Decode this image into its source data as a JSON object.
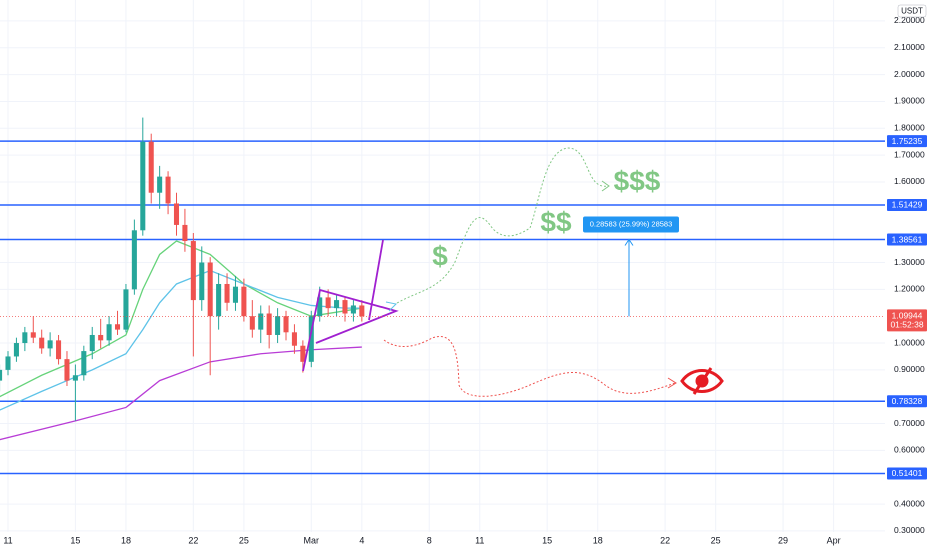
{
  "chart_data": {
    "type": "candlestick",
    "unit": "USDT",
    "xlim": [
      10.525,
      63.05
    ],
    "ylim": [
      0.296,
      2.278
    ],
    "xticks": [
      {
        "value": 11,
        "label": "11"
      },
      {
        "value": 15,
        "label": "15"
      },
      {
        "value": 18,
        "label": "18"
      },
      {
        "value": 22,
        "label": "22"
      },
      {
        "value": 25,
        "label": "25"
      },
      {
        "value": 29,
        "label": "Mar"
      },
      {
        "value": 32,
        "label": "4"
      },
      {
        "value": 36,
        "label": "8"
      },
      {
        "value": 39,
        "label": "11"
      },
      {
        "value": 43,
        "label": "15"
      },
      {
        "value": 46,
        "label": "18"
      },
      {
        "value": 50,
        "label": "22"
      },
      {
        "value": 53,
        "label": "25"
      },
      {
        "value": 57,
        "label": "29"
      },
      {
        "value": 60,
        "label": "Apr"
      }
    ],
    "yticks": [
      {
        "value": 2.2,
        "label": "2.20000"
      },
      {
        "value": 2.1,
        "label": "2.10000"
      },
      {
        "value": 2.0,
        "label": "2.00000"
      },
      {
        "value": 1.9,
        "label": "1.90000"
      },
      {
        "value": 1.8,
        "label": "1.80000"
      },
      {
        "value": 1.7,
        "label": "1.70000"
      },
      {
        "value": 1.6,
        "label": "1.60000"
      },
      {
        "value": 1.3,
        "label": "1.30000"
      },
      {
        "value": 1.2,
        "label": "1.20000"
      },
      {
        "value": 1.0,
        "label": "1.00000"
      },
      {
        "value": 0.9,
        "label": "0.90000"
      },
      {
        "value": 0.7,
        "label": "0.70000"
      },
      {
        "value": 0.6,
        "label": "0.60000"
      },
      {
        "value": 0.4,
        "label": "0.40000"
      },
      {
        "value": 0.3,
        "label": "0.30000"
      }
    ],
    "up_color": "#26a69a",
    "down_color": "#ef5350",
    "x": [
      10.5,
      11,
      11.5,
      12,
      12.5,
      13,
      13.5,
      14,
      14.5,
      15,
      15.5,
      16,
      16.5,
      17,
      17.5,
      18,
      18.5,
      19,
      19.5,
      20,
      20.5,
      21,
      21.5,
      22,
      22.5,
      23,
      23.5,
      24,
      24.5,
      25,
      25.5,
      26,
      26.5,
      27,
      27.5,
      28,
      28.5,
      29,
      29.5,
      30,
      30.5,
      31,
      31.5,
      32
    ],
    "open": [
      0.86,
      0.9,
      0.95,
      1.0,
      1.04,
      1.02,
      0.98,
      1.01,
      0.94,
      0.86,
      0.88,
      0.97,
      1.03,
      1.01,
      1.07,
      1.05,
      1.2,
      1.42,
      1.75,
      1.56,
      1.62,
      1.52,
      1.44,
      1.38,
      1.16,
      1.3,
      1.1,
      1.22,
      1.15,
      1.21,
      1.1,
      1.05,
      1.11,
      1.03,
      1.1,
      1.04,
      0.99,
      0.93,
      1.1,
      1.17,
      1.13,
      1.16,
      1.11,
      1.14
    ],
    "high": [
      0.92,
      0.97,
      1.02,
      1.06,
      1.1,
      1.05,
      1.04,
      1.03,
      0.97,
      0.92,
      0.99,
      1.06,
      1.09,
      1.1,
      1.12,
      1.22,
      1.46,
      1.84,
      1.78,
      1.66,
      1.64,
      1.56,
      1.5,
      1.41,
      1.36,
      1.32,
      1.26,
      1.26,
      1.25,
      1.24,
      1.16,
      1.14,
      1.14,
      1.13,
      1.12,
      1.07,
      1.01,
      1.12,
      1.21,
      1.2,
      1.18,
      1.17,
      1.16,
      1.16
    ],
    "low": [
      0.82,
      0.88,
      0.93,
      0.97,
      1.0,
      0.96,
      0.95,
      0.92,
      0.84,
      0.71,
      0.86,
      0.94,
      0.98,
      0.99,
      1.03,
      1.04,
      1.18,
      1.4,
      1.52,
      1.5,
      1.48,
      1.4,
      1.34,
      0.95,
      1.12,
      0.88,
      1.05,
      1.12,
      1.12,
      1.08,
      1.02,
      1.0,
      0.98,
      1.0,
      1.01,
      0.96,
      0.89,
      0.91,
      1.08,
      1.1,
      1.1,
      1.08,
      1.08,
      1.08
    ],
    "close": [
      0.9,
      0.95,
      1.0,
      1.04,
      1.02,
      0.98,
      1.01,
      0.94,
      0.86,
      0.88,
      0.97,
      1.03,
      1.01,
      1.07,
      1.05,
      1.2,
      1.42,
      1.75,
      1.56,
      1.62,
      1.52,
      1.44,
      1.38,
      1.16,
      1.3,
      1.1,
      1.22,
      1.15,
      1.21,
      1.1,
      1.05,
      1.11,
      1.03,
      1.1,
      1.04,
      0.99,
      0.93,
      1.1,
      1.17,
      1.13,
      1.16,
      1.11,
      1.14,
      1.09944
    ],
    "moving_averages": [
      {
        "color": "#b83cd6",
        "x": [
          10.5,
          15,
          18,
          20,
          23,
          26,
          29,
          32
        ],
        "values": [
          0.64,
          0.71,
          0.76,
          0.86,
          0.93,
          0.96,
          0.975,
          0.985
        ]
      },
      {
        "color": "#66d37a",
        "x": [
          10.5,
          13,
          16,
          18,
          19,
          20,
          21,
          23,
          25,
          27,
          29,
          31,
          32
        ],
        "values": [
          0.8,
          0.88,
          0.96,
          1.03,
          1.2,
          1.33,
          1.38,
          1.33,
          1.22,
          1.15,
          1.1,
          1.12,
          1.13
        ]
      },
      {
        "color": "#5ec3e8",
        "x": [
          10.5,
          13,
          16,
          18,
          19,
          20,
          21,
          23,
          25,
          27,
          29,
          31,
          32
        ],
        "values": [
          0.75,
          0.82,
          0.9,
          0.96,
          1.05,
          1.15,
          1.22,
          1.27,
          1.22,
          1.17,
          1.14,
          1.13,
          1.13
        ]
      }
    ],
    "levels": [
      1.75235,
      1.51429,
      1.38561,
      0.78328,
      0.51401
    ],
    "level_color": "#2962ff",
    "last_price": 1.09944,
    "countdown": "01:52:38",
    "measure_label": "0.28583 (25.99%) 28583",
    "annotations": [
      "$",
      "$$",
      "$$$"
    ]
  }
}
